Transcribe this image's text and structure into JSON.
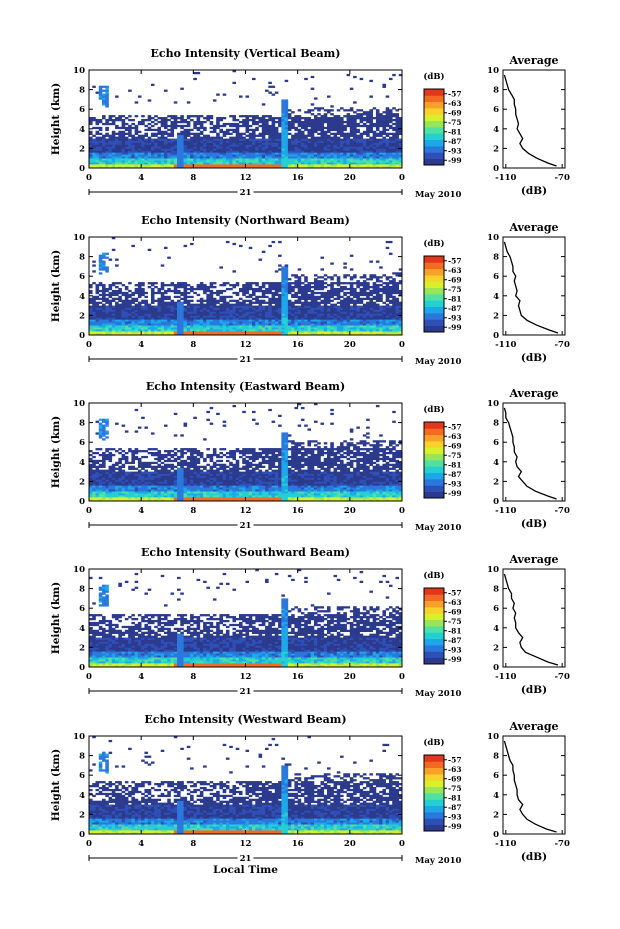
{
  "x_axis_title": "Local Time",
  "chart_data": [
    {
      "type": "heatmap",
      "title": "Echo Intensity (Vertical Beam)",
      "beam": "vertical",
      "xlabel": "",
      "ylabel": "Height (km)",
      "xlim": [
        0,
        24
      ],
      "ylim": [
        0,
        10
      ],
      "xticks": [
        "0",
        "4",
        "8",
        "12",
        "16",
        "20",
        "0"
      ],
      "yticks": [
        "0",
        "2",
        "4",
        "6",
        "8",
        "10"
      ],
      "day_label": "21",
      "month_year_label": "May 2010",
      "colorbar": {
        "unit": "(dB)",
        "ticks": [
          "-57",
          "-63",
          "-69",
          "-75",
          "-81",
          "-87",
          "-93",
          "-99"
        ],
        "range": [
          -102,
          -54
        ]
      },
      "average_profile": {
        "title": "Average",
        "xlabel": "(dB)",
        "xticks": [
          "-110",
          "-70"
        ],
        "xlim": [
          -112,
          -68
        ],
        "yticks": [
          "0",
          "2",
          "4",
          "6",
          "8",
          "10"
        ],
        "height": [
          0.2,
          0.5,
          1.0,
          1.5,
          2.0,
          2.5,
          3.0,
          3.5,
          4.0,
          4.5,
          5.0,
          5.5,
          6.0,
          6.5,
          7.0,
          7.5,
          8.0,
          8.5,
          9.0,
          9.5
        ],
        "db": [
          -74,
          -80,
          -88,
          -94,
          -98,
          -100,
          -98,
          -100,
          -102,
          -101,
          -102,
          -103,
          -103,
          -104,
          -104,
          -106,
          -108,
          -109,
          -110,
          -111
        ]
      }
    },
    {
      "type": "heatmap",
      "title": "Echo Intensity (Northward Beam)",
      "beam": "northward",
      "xlabel": "",
      "ylabel": "Height (km)",
      "xlim": [
        0,
        24
      ],
      "ylim": [
        0,
        10
      ],
      "xticks": [
        "0",
        "4",
        "8",
        "12",
        "16",
        "20",
        "0"
      ],
      "yticks": [
        "0",
        "2",
        "4",
        "6",
        "8",
        "10"
      ],
      "day_label": "21",
      "month_year_label": "May 2010",
      "colorbar": {
        "unit": "(dB)",
        "ticks": [
          "-57",
          "-63",
          "-69",
          "-75",
          "-81",
          "-87",
          "-93",
          "-99"
        ],
        "range": [
          -102,
          -54
        ]
      },
      "average_profile": {
        "title": "Average",
        "xlabel": "(dB)",
        "xticks": [
          "-110",
          "-70"
        ],
        "xlim": [
          -112,
          -68
        ],
        "yticks": [
          "0",
          "2",
          "4",
          "6",
          "8",
          "10"
        ],
        "height": [
          0.2,
          0.5,
          1.0,
          1.5,
          2.0,
          2.5,
          3.0,
          3.5,
          4.0,
          4.5,
          5.0,
          5.5,
          6.0,
          6.5,
          7.0,
          7.5,
          8.0,
          8.5,
          9.0,
          9.5
        ],
        "db": [
          -73,
          -79,
          -88,
          -95,
          -99,
          -100,
          -101,
          -100,
          -103,
          -102,
          -103,
          -104,
          -103,
          -105,
          -105,
          -106,
          -107,
          -109,
          -110,
          -111
        ]
      }
    },
    {
      "type": "heatmap",
      "title": "Echo Intensity (Eastward Beam)",
      "beam": "eastward",
      "xlabel": "",
      "ylabel": "Height (km)",
      "xlim": [
        0,
        24
      ],
      "ylim": [
        0,
        10
      ],
      "xticks": [
        "0",
        "4",
        "8",
        "12",
        "16",
        "20",
        "0"
      ],
      "yticks": [
        "0",
        "2",
        "4",
        "6",
        "8",
        "10"
      ],
      "day_label": "21",
      "month_year_label": "May 2010",
      "colorbar": {
        "unit": "(dB)",
        "ticks": [
          "-57",
          "-63",
          "-69",
          "-75",
          "-81",
          "-87",
          "-93",
          "-99"
        ],
        "range": [
          -102,
          -54
        ]
      },
      "average_profile": {
        "title": "Average",
        "xlabel": "(dB)",
        "xticks": [
          "-110",
          "-70"
        ],
        "xlim": [
          -112,
          -68
        ],
        "yticks": [
          "0",
          "2",
          "4",
          "6",
          "8",
          "10"
        ],
        "height": [
          0.2,
          0.5,
          1.0,
          1.5,
          2.0,
          2.5,
          3.0,
          3.5,
          4.0,
          4.5,
          5.0,
          5.5,
          6.0,
          6.5,
          7.0,
          7.5,
          8.0,
          8.5,
          9.0,
          9.5
        ],
        "db": [
          -74,
          -80,
          -89,
          -95,
          -98,
          -101,
          -99,
          -102,
          -103,
          -102,
          -104,
          -104,
          -105,
          -105,
          -106,
          -107,
          -108,
          -110,
          -110,
          -111
        ]
      }
    },
    {
      "type": "heatmap",
      "title": "Echo Intensity (Southward Beam)",
      "beam": "southward",
      "xlabel": "",
      "ylabel": "Height (km)",
      "xlim": [
        0,
        24
      ],
      "ylim": [
        0,
        10
      ],
      "xticks": [
        "0",
        "4",
        "8",
        "12",
        "16",
        "20",
        "0"
      ],
      "yticks": [
        "0",
        "2",
        "4",
        "6",
        "8",
        "10"
      ],
      "day_label": "21",
      "month_year_label": "May 2010",
      "colorbar": {
        "unit": "(dB)",
        "ticks": [
          "-57",
          "-63",
          "-69",
          "-75",
          "-81",
          "-87",
          "-93",
          "-99"
        ],
        "range": [
          -102,
          -54
        ]
      },
      "average_profile": {
        "title": "Average",
        "xlabel": "(dB)",
        "xticks": [
          "-110",
          "-70"
        ],
        "xlim": [
          -112,
          -68
        ],
        "yticks": [
          "0",
          "2",
          "4",
          "6",
          "8",
          "10"
        ],
        "height": [
          0.2,
          0.5,
          1.0,
          1.5,
          2.0,
          2.5,
          3.0,
          3.5,
          4.0,
          4.5,
          5.0,
          5.5,
          6.0,
          6.5,
          7.0,
          7.5,
          8.0,
          8.5,
          9.0,
          9.5
        ],
        "db": [
          -73,
          -80,
          -88,
          -96,
          -99,
          -100,
          -98,
          -101,
          -103,
          -103,
          -104,
          -103,
          -105,
          -104,
          -106,
          -106,
          -108,
          -109,
          -110,
          -111
        ]
      }
    },
    {
      "type": "heatmap",
      "title": "Echo Intensity (Westward Beam)",
      "beam": "westward",
      "xlabel": "Local Time",
      "ylabel": "Height (km)",
      "xlim": [
        0,
        24
      ],
      "ylim": [
        0,
        10
      ],
      "xticks": [
        "0",
        "4",
        "8",
        "12",
        "16",
        "20",
        "0"
      ],
      "yticks": [
        "0",
        "2",
        "4",
        "6",
        "8",
        "10"
      ],
      "day_label": "21",
      "month_year_label": "May 2010",
      "colorbar": {
        "unit": "(dB)",
        "ticks": [
          "-57",
          "-63",
          "-69",
          "-75",
          "-81",
          "-87",
          "-93",
          "-99"
        ],
        "range": [
          -102,
          -54
        ]
      },
      "average_profile": {
        "title": "Average",
        "xlabel": "(dB)",
        "xticks": [
          "-110",
          "-70"
        ],
        "xlim": [
          -112,
          -68
        ],
        "yticks": [
          "0",
          "2",
          "4",
          "6",
          "8",
          "10"
        ],
        "height": [
          0.2,
          0.5,
          1.0,
          1.5,
          2.0,
          2.5,
          3.0,
          3.5,
          4.0,
          4.5,
          5.0,
          5.5,
          6.0,
          6.5,
          7.0,
          7.5,
          8.0,
          8.5,
          9.0,
          9.5
        ],
        "db": [
          -74,
          -81,
          -89,
          -95,
          -98,
          -100,
          -98,
          -101,
          -102,
          -102,
          -103,
          -104,
          -104,
          -105,
          -105,
          -107,
          -108,
          -109,
          -110,
          -111
        ]
      }
    }
  ]
}
